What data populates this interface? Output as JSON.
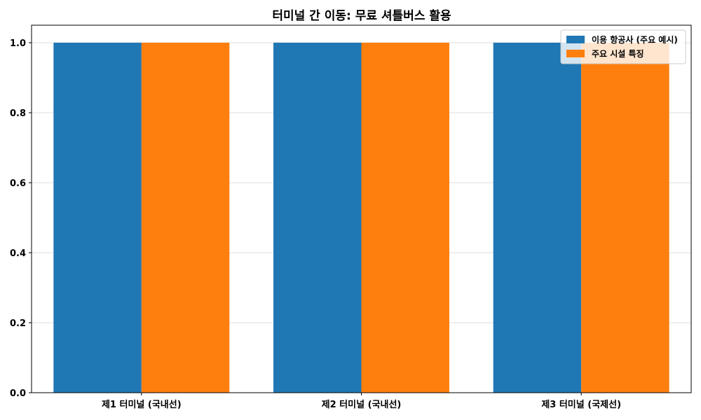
{
  "chart_data": {
    "type": "bar",
    "title": "터미널 간 이동: 무료 셔틀버스 활용",
    "xlabel": "",
    "ylabel": "",
    "categories": [
      "제1 터미널 (국내선)",
      "제2 터미널 (국내선)",
      "제3 터미널 (국제선)"
    ],
    "series": [
      {
        "name": "이용 항공사 (주요 예시)",
        "color": "#1f77b4",
        "values": [
          1.0,
          1.0,
          1.0
        ]
      },
      {
        "name": "주요 시설 특징",
        "color": "#ff7f0e",
        "values": [
          1.0,
          1.0,
          1.0
        ]
      }
    ],
    "ylim": [
      0,
      1.05
    ],
    "yticks": [
      "0.0",
      "0.2",
      "0.4",
      "0.6",
      "0.8",
      "1.0"
    ],
    "grid": "y",
    "legend_position": "top-right"
  }
}
